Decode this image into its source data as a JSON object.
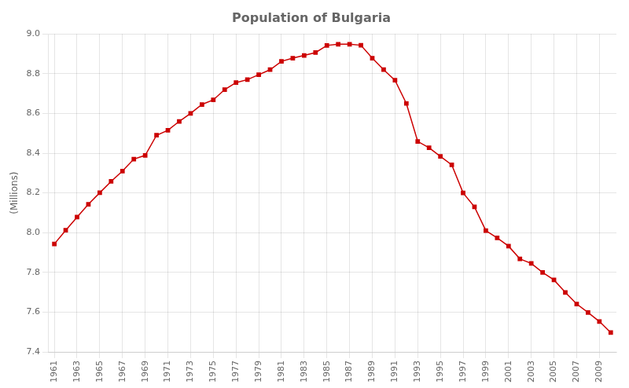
{
  "chart_data": {
    "type": "line",
    "title": "Population of Bulgaria",
    "ylabel": "(Millions)",
    "x": [
      1961,
      1962,
      1963,
      1964,
      1965,
      1966,
      1967,
      1968,
      1969,
      1970,
      1971,
      1972,
      1973,
      1974,
      1975,
      1976,
      1977,
      1978,
      1979,
      1980,
      1981,
      1982,
      1983,
      1984,
      1985,
      1986,
      1987,
      1988,
      1989,
      1990,
      1991,
      1992,
      1993,
      1994,
      1995,
      1996,
      1997,
      1998,
      1999,
      2000,
      2001,
      2002,
      2003,
      2004,
      2005,
      2006,
      2007,
      2008,
      2009,
      2010
    ],
    "values": [
      7.943,
      8.012,
      8.078,
      8.143,
      8.201,
      8.258,
      8.31,
      8.37,
      8.389,
      8.49,
      8.515,
      8.56,
      8.6,
      8.645,
      8.668,
      8.72,
      8.755,
      8.77,
      8.795,
      8.82,
      8.862,
      8.878,
      8.892,
      8.906,
      8.942,
      8.948,
      8.948,
      8.943,
      8.878,
      8.82,
      8.767,
      8.65,
      8.459,
      8.427,
      8.384,
      8.341,
      8.2,
      8.13,
      8.01,
      7.974,
      7.932,
      7.868,
      7.845,
      7.8,
      7.762,
      7.699,
      7.641,
      7.598,
      7.553,
      7.497
    ],
    "color": "#cc0000",
    "marker": "square",
    "xlim": [
      1960.5,
      2010.5
    ],
    "xticks": [
      1961,
      1963,
      1965,
      1967,
      1969,
      1971,
      1973,
      1975,
      1977,
      1979,
      1981,
      1983,
      1985,
      1987,
      1989,
      1991,
      1993,
      1995,
      1997,
      1999,
      2001,
      2003,
      2005,
      2007,
      2009
    ],
    "ylim": [
      7.4,
      9.0
    ],
    "yticks": [
      7.4,
      7.6,
      7.8,
      {
        "value": 8.0,
        "label": "8.0"
      },
      8.2,
      8.4,
      8.6,
      8.8,
      {
        "value": 9.0,
        "label": "9.0"
      }
    ],
    "grid": true
  }
}
